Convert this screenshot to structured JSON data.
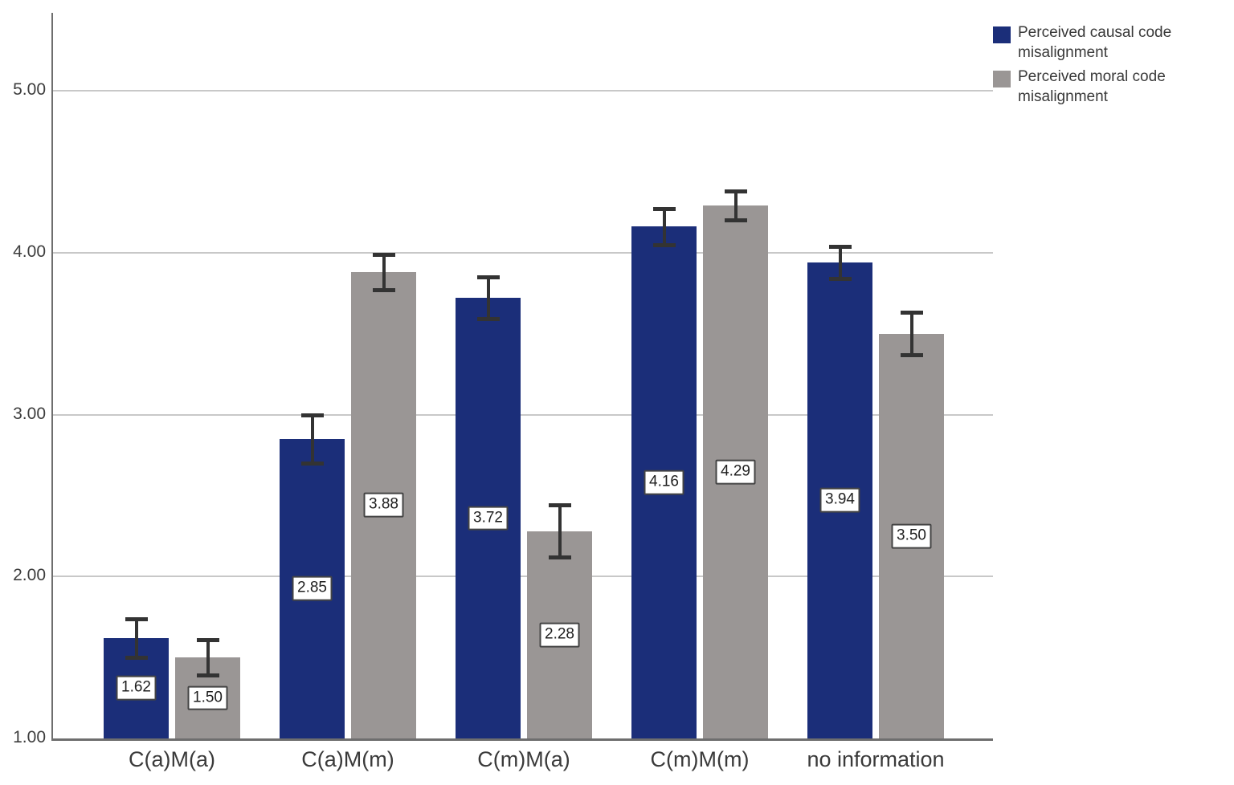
{
  "chart_data": {
    "type": "bar",
    "title": "",
    "xlabel": "",
    "ylabel": "",
    "categories": [
      "C(a)M(a)",
      "C(a)M(m)",
      "C(m)M(a)",
      "C(m)M(m)",
      "no information"
    ],
    "series": [
      {
        "name": "Perceived causal code misalignment",
        "color": "#1b2e79",
        "values": [
          1.62,
          2.85,
          3.72,
          4.16,
          3.94
        ],
        "errors": [
          0.12,
          0.15,
          0.13,
          0.11,
          0.1
        ]
      },
      {
        "name": "Perceived moral code misalignment",
        "color": "#9a9695",
        "values": [
          1.5,
          3.88,
          2.28,
          4.29,
          3.5
        ],
        "errors": [
          0.11,
          0.11,
          0.16,
          0.09,
          0.13
        ]
      }
    ],
    "data_labels": [
      [
        "1.62",
        "2.85",
        "3.72",
        "4.16",
        "3.94"
      ],
      [
        "1.50",
        "3.88",
        "2.28",
        "4.29",
        "3.50"
      ]
    ],
    "ylim": [
      1.0,
      5.45
    ],
    "yticks": [
      1,
      2,
      3,
      4,
      5
    ],
    "ytick_labels": [
      "1.00",
      "2.00",
      "3.00",
      "4.00",
      "5.00"
    ],
    "grid": "horizontal",
    "error_bars": true,
    "legend_position": "top-right",
    "colors": {
      "grid": "#c8c8c8",
      "axis": "#6e6e6e",
      "error_bar": "#333333",
      "label_border": "#444444",
      "label_bg": "#ffffff",
      "text": "#3a3a3a"
    }
  }
}
